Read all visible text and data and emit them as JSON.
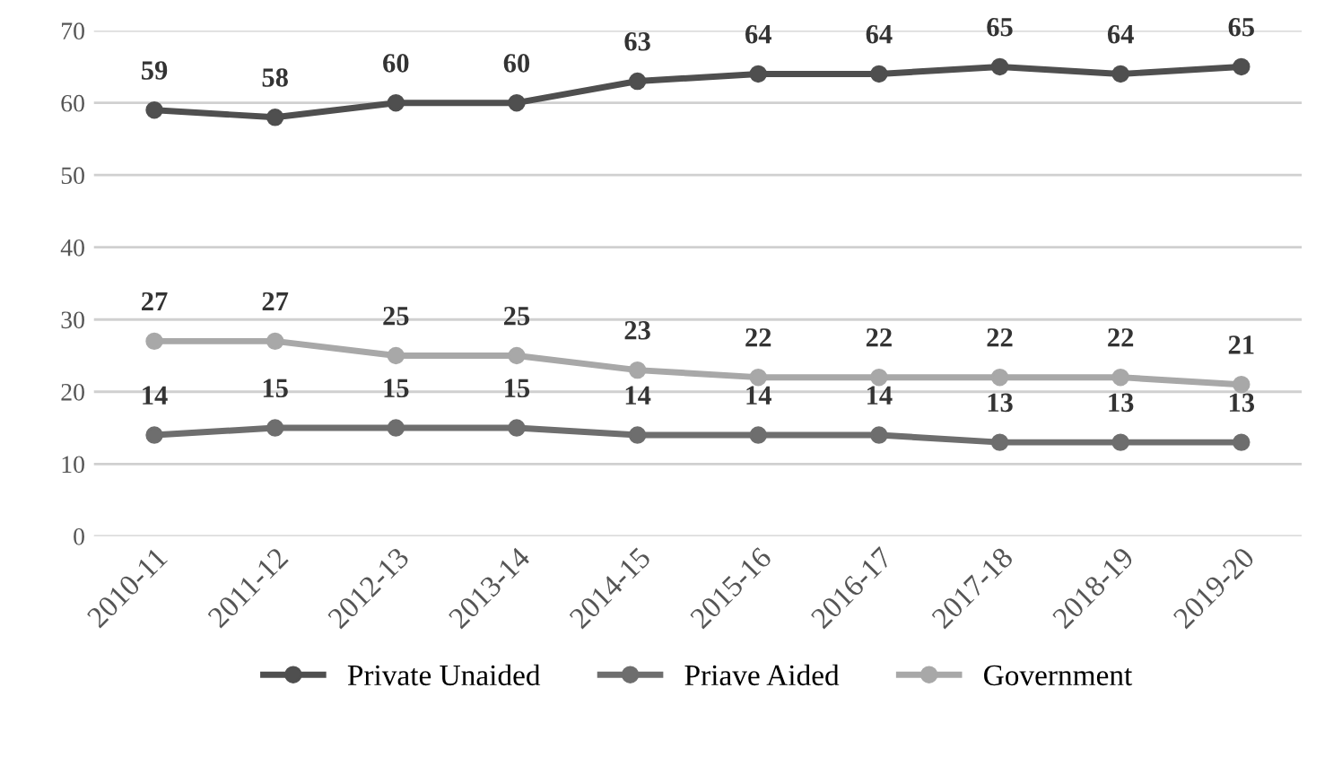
{
  "chart_data": {
    "type": "line",
    "categories": [
      "2010-11",
      "2011-12",
      "2012-13",
      "2013-14",
      "2014-15",
      "2015-16",
      "2016-17",
      "2017-18",
      "2018-19",
      "2019-20"
    ],
    "series": [
      {
        "name": "Private Unaided",
        "color": "#4f4f4f",
        "values": [
          59,
          58,
          60,
          60,
          63,
          64,
          64,
          65,
          64,
          65
        ]
      },
      {
        "name": "Priave Aided",
        "color": "#6e6e6e",
        "values": [
          14,
          15,
          15,
          15,
          14,
          14,
          14,
          13,
          13,
          13
        ]
      },
      {
        "name": "Government",
        "color": "#a8a8a8",
        "values": [
          27,
          27,
          25,
          25,
          23,
          22,
          22,
          22,
          22,
          21
        ]
      }
    ],
    "ylim": [
      0,
      70
    ],
    "yticks": [
      0,
      10,
      20,
      30,
      40,
      50,
      60,
      70
    ],
    "grid": "y",
    "legend": "bottom",
    "marker": "circle",
    "line_style": "solid",
    "data_labels": true
  }
}
